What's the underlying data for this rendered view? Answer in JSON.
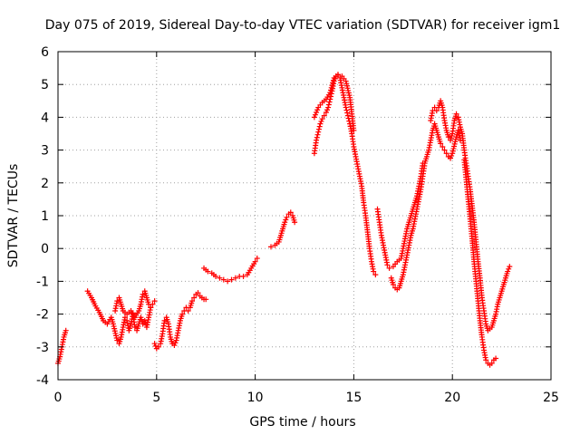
{
  "chart_data": {
    "type": "scatter",
    "title": "Day 075 of 2019, Sidereal Day-to-day VTEC variation (SDTVAR) for receiver igm1",
    "xlabel": "GPS time / hours",
    "ylabel": "SDTVAR / TECUs",
    "xlim": [
      0,
      25
    ],
    "ylim": [
      -4,
      6
    ],
    "xticks": [
      0,
      5,
      10,
      15,
      20,
      25
    ],
    "yticks": [
      -4,
      -3,
      -2,
      -1,
      0,
      1,
      2,
      3,
      4,
      5,
      6
    ],
    "grid": true,
    "marker": "+",
    "series": [
      {
        "name": "SDTVAR",
        "color": "#ff0000",
        "segments": [
          [
            [
              0.0,
              -3.5
            ],
            [
              0.1,
              -3.3
            ],
            [
              0.2,
              -3.0
            ],
            [
              0.3,
              -2.7
            ],
            [
              0.4,
              -2.5
            ]
          ],
          [
            [
              1.5,
              -1.3
            ],
            [
              1.7,
              -1.5
            ],
            [
              1.9,
              -1.75
            ],
            [
              2.1,
              -1.95
            ],
            [
              2.3,
              -2.2
            ],
            [
              2.5,
              -2.3
            ],
            [
              2.7,
              -2.1
            ],
            [
              2.8,
              -2.3
            ],
            [
              3.0,
              -2.8
            ],
            [
              3.1,
              -2.9
            ],
            [
              3.2,
              -2.7
            ],
            [
              3.3,
              -2.4
            ],
            [
              3.4,
              -2.1
            ],
            [
              3.5,
              -2.2
            ],
            [
              3.6,
              -2.5
            ],
            [
              3.7,
              -2.3
            ],
            [
              3.8,
              -2.0
            ],
            [
              3.9,
              -2.4
            ],
            [
              4.0,
              -2.5
            ],
            [
              4.1,
              -2.3
            ],
            [
              4.2,
              -2.1
            ],
            [
              4.3,
              -2.3
            ],
            [
              4.4,
              -2.2
            ],
            [
              4.5,
              -2.4
            ],
            [
              4.6,
              -2.1
            ],
            [
              4.7,
              -1.8
            ],
            [
              4.8,
              -1.7
            ],
            [
              4.9,
              -1.6
            ]
          ],
          [
            [
              2.9,
              -1.9
            ],
            [
              3.0,
              -1.6
            ],
            [
              3.1,
              -1.5
            ],
            [
              3.2,
              -1.7
            ],
            [
              3.3,
              -1.9
            ],
            [
              3.5,
              -2.0
            ],
            [
              3.7,
              -1.9
            ],
            [
              3.9,
              -2.1
            ],
            [
              4.1,
              -1.9
            ],
            [
              4.2,
              -1.7
            ],
            [
              4.3,
              -1.4
            ],
            [
              4.4,
              -1.3
            ],
            [
              4.5,
              -1.5
            ],
            [
              4.6,
              -1.7
            ],
            [
              4.7,
              -1.8
            ]
          ],
          [
            [
              4.9,
              -2.9
            ],
            [
              5.0,
              -3.05
            ],
            [
              5.1,
              -3.0
            ],
            [
              5.2,
              -2.9
            ],
            [
              5.3,
              -2.6
            ],
            [
              5.4,
              -2.2
            ],
            [
              5.5,
              -2.1
            ],
            [
              5.6,
              -2.3
            ],
            [
              5.7,
              -2.7
            ],
            [
              5.8,
              -2.9
            ],
            [
              5.9,
              -2.95
            ],
            [
              6.0,
              -2.8
            ],
            [
              6.1,
              -2.5
            ],
            [
              6.2,
              -2.2
            ],
            [
              6.3,
              -2.0
            ],
            [
              6.4,
              -1.9
            ],
            [
              6.5,
              -1.8
            ],
            [
              6.6,
              -1.9
            ],
            [
              6.7,
              -1.8
            ],
            [
              6.8,
              -1.6
            ],
            [
              6.9,
              -1.5
            ],
            [
              7.0,
              -1.4
            ],
            [
              7.1,
              -1.35
            ],
            [
              7.2,
              -1.45
            ],
            [
              7.3,
              -1.5
            ],
            [
              7.4,
              -1.55
            ],
            [
              7.5,
              -1.55
            ]
          ],
          [
            [
              7.4,
              -0.6
            ],
            [
              7.6,
              -0.7
            ],
            [
              7.8,
              -0.75
            ],
            [
              8.0,
              -0.85
            ],
            [
              8.2,
              -0.9
            ],
            [
              8.4,
              -0.95
            ],
            [
              8.6,
              -1.0
            ],
            [
              8.8,
              -0.95
            ],
            [
              9.0,
              -0.9
            ],
            [
              9.2,
              -0.85
            ],
            [
              9.4,
              -0.85
            ],
            [
              9.6,
              -0.8
            ],
            [
              9.8,
              -0.6
            ],
            [
              10.0,
              -0.4
            ],
            [
              10.1,
              -0.3
            ]
          ],
          [
            [
              10.8,
              0.05
            ],
            [
              11.0,
              0.1
            ],
            [
              11.2,
              0.2
            ],
            [
              11.3,
              0.4
            ],
            [
              11.4,
              0.6
            ],
            [
              11.5,
              0.8
            ],
            [
              11.6,
              0.95
            ],
            [
              11.7,
              1.05
            ],
            [
              11.8,
              1.1
            ],
            [
              11.9,
              1.0
            ],
            [
              12.0,
              0.8
            ]
          ],
          [
            [
              13.0,
              2.9
            ],
            [
              13.1,
              3.3
            ],
            [
              13.2,
              3.55
            ],
            [
              13.3,
              3.8
            ],
            [
              13.4,
              3.95
            ],
            [
              13.5,
              4.05
            ],
            [
              13.6,
              4.15
            ],
            [
              13.7,
              4.3
            ],
            [
              13.8,
              4.55
            ],
            [
              13.9,
              4.8
            ],
            [
              14.0,
              5.1
            ],
            [
              14.1,
              5.25
            ],
            [
              14.2,
              5.3
            ],
            [
              14.3,
              5.2
            ],
            [
              14.4,
              4.9
            ],
            [
              14.5,
              4.6
            ],
            [
              14.6,
              4.3
            ],
            [
              14.7,
              4.05
            ],
            [
              14.8,
              3.8
            ],
            [
              14.9,
              3.5
            ],
            [
              15.0,
              3.1
            ],
            [
              15.1,
              2.8
            ],
            [
              15.2,
              2.5
            ],
            [
              15.3,
              2.2
            ],
            [
              15.4,
              1.9
            ],
            [
              15.5,
              1.4
            ],
            [
              15.6,
              1.0
            ],
            [
              15.7,
              0.5
            ],
            [
              15.8,
              0.0
            ],
            [
              15.9,
              -0.4
            ],
            [
              16.0,
              -0.7
            ],
            [
              16.1,
              -0.8
            ]
          ],
          [
            [
              13.0,
              4.0
            ],
            [
              13.2,
              4.3
            ],
            [
              13.4,
              4.45
            ],
            [
              13.6,
              4.55
            ],
            [
              13.8,
              4.75
            ],
            [
              14.0,
              5.2
            ],
            [
              14.2,
              5.3
            ],
            [
              14.4,
              5.25
            ],
            [
              14.6,
              5.1
            ],
            [
              14.8,
              4.6
            ],
            [
              15.0,
              3.6
            ]
          ],
          [
            [
              16.2,
              1.2
            ],
            [
              16.3,
              0.8
            ],
            [
              16.4,
              0.4
            ],
            [
              16.5,
              0.1
            ],
            [
              16.6,
              -0.2
            ],
            [
              16.7,
              -0.5
            ],
            [
              16.8,
              -0.6
            ],
            [
              17.0,
              -0.55
            ],
            [
              17.2,
              -0.4
            ],
            [
              17.4,
              -0.3
            ],
            [
              17.5,
              0.0
            ],
            [
              17.6,
              0.3
            ],
            [
              17.7,
              0.6
            ],
            [
              17.8,
              0.8
            ],
            [
              17.9,
              1.0
            ],
            [
              18.0,
              1.2
            ],
            [
              18.1,
              1.4
            ],
            [
              18.2,
              1.6
            ],
            [
              18.3,
              1.9
            ],
            [
              18.4,
              2.2
            ],
            [
              18.5,
              2.6
            ]
          ],
          [
            [
              16.9,
              -0.9
            ],
            [
              17.0,
              -1.1
            ],
            [
              17.1,
              -1.2
            ],
            [
              17.2,
              -1.25
            ],
            [
              17.3,
              -1.2
            ],
            [
              17.4,
              -1.0
            ],
            [
              17.5,
              -0.8
            ],
            [
              17.6,
              -0.5
            ],
            [
              17.7,
              -0.2
            ],
            [
              17.8,
              0.1
            ],
            [
              17.9,
              0.4
            ],
            [
              18.0,
              0.6
            ],
            [
              18.1,
              0.9
            ],
            [
              18.2,
              1.2
            ],
            [
              18.3,
              1.5
            ],
            [
              18.4,
              1.8
            ],
            [
              18.5,
              2.2
            ],
            [
              18.6,
              2.6
            ],
            [
              18.7,
              2.8
            ],
            [
              18.8,
              3.0
            ],
            [
              18.9,
              3.3
            ],
            [
              19.0,
              3.6
            ],
            [
              19.1,
              3.8
            ],
            [
              19.2,
              3.6
            ],
            [
              19.3,
              3.4
            ],
            [
              19.4,
              3.2
            ],
            [
              19.5,
              3.1
            ],
            [
              19.6,
              3.0
            ],
            [
              19.7,
              2.9
            ],
            [
              19.8,
              2.8
            ],
            [
              19.9,
              2.75
            ],
            [
              20.0,
              2.9
            ],
            [
              20.2,
              3.4
            ],
            [
              20.3,
              3.6
            ],
            [
              20.4,
              3.3
            ]
          ],
          [
            [
              18.9,
              3.9
            ],
            [
              19.0,
              4.2
            ],
            [
              19.1,
              4.3
            ],
            [
              19.2,
              4.2
            ],
            [
              19.3,
              4.3
            ],
            [
              19.4,
              4.5
            ],
            [
              19.5,
              4.3
            ],
            [
              19.6,
              3.9
            ],
            [
              19.7,
              3.6
            ],
            [
              19.8,
              3.4
            ],
            [
              19.9,
              3.3
            ],
            [
              20.0,
              3.5
            ],
            [
              20.1,
              3.9
            ],
            [
              20.2,
              4.1
            ],
            [
              20.3,
              4.0
            ],
            [
              20.4,
              3.7
            ],
            [
              20.5,
              3.5
            ],
            [
              20.6,
              3.0
            ],
            [
              20.7,
              2.6
            ],
            [
              20.8,
              2.2
            ],
            [
              20.9,
              1.8
            ],
            [
              21.0,
              1.3
            ],
            [
              21.1,
              0.8
            ],
            [
              21.2,
              0.2
            ],
            [
              21.3,
              -0.4
            ],
            [
              21.4,
              -0.9
            ],
            [
              21.5,
              -1.5
            ],
            [
              21.6,
              -1.9
            ],
            [
              21.7,
              -2.3
            ],
            [
              21.8,
              -2.5
            ],
            [
              21.9,
              -2.45
            ],
            [
              22.0,
              -2.4
            ],
            [
              22.1,
              -2.2
            ],
            [
              22.2,
              -2.0
            ],
            [
              22.3,
              -1.7
            ],
            [
              22.4,
              -1.5
            ],
            [
              22.5,
              -1.3
            ],
            [
              22.6,
              -1.1
            ],
            [
              22.7,
              -0.9
            ],
            [
              22.8,
              -0.7
            ],
            [
              22.9,
              -0.55
            ]
          ],
          [
            [
              20.6,
              2.7
            ],
            [
              20.7,
              2.1
            ],
            [
              20.8,
              1.5
            ],
            [
              20.9,
              0.9
            ],
            [
              21.0,
              0.3
            ],
            [
              21.1,
              -0.4
            ],
            [
              21.2,
              -1.0
            ],
            [
              21.3,
              -1.6
            ],
            [
              21.4,
              -2.2
            ],
            [
              21.5,
              -2.7
            ],
            [
              21.6,
              -3.1
            ],
            [
              21.7,
              -3.4
            ],
            [
              21.8,
              -3.5
            ],
            [
              21.9,
              -3.55
            ],
            [
              22.0,
              -3.5
            ],
            [
              22.1,
              -3.4
            ],
            [
              22.2,
              -3.35
            ]
          ]
        ]
      }
    ]
  }
}
